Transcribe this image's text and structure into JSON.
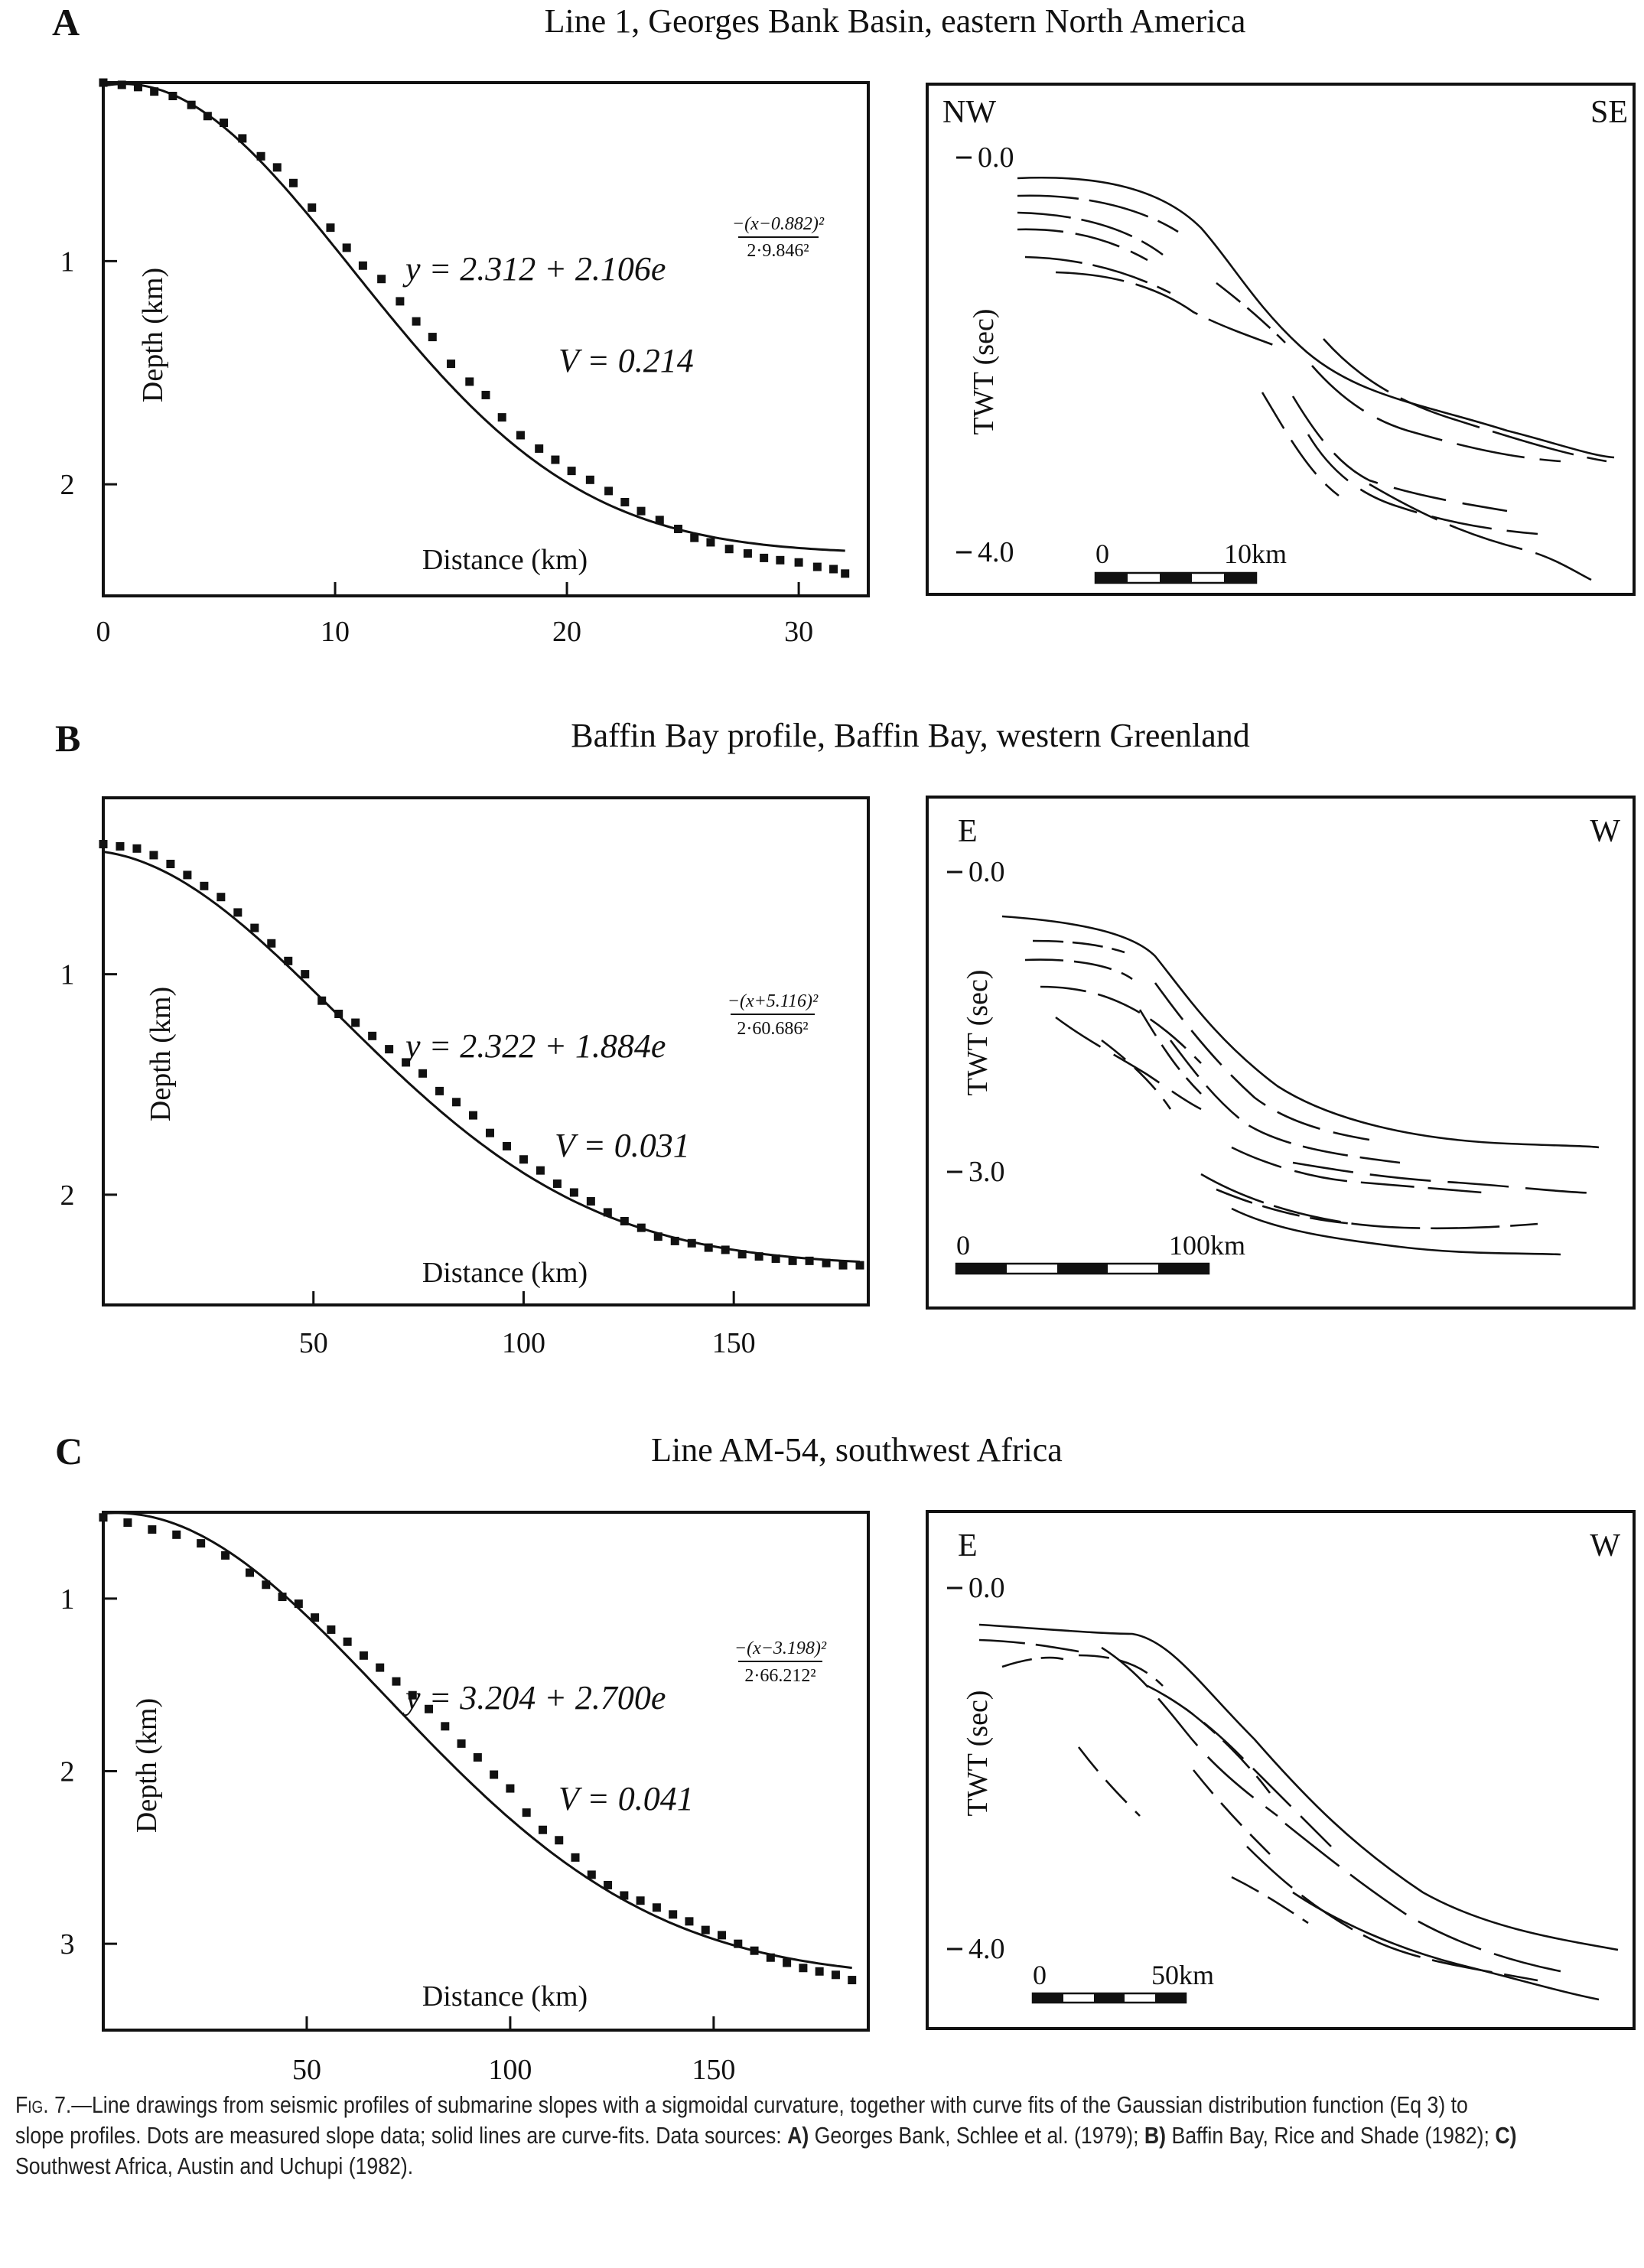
{
  "figure": {
    "panels": [
      {
        "letter": "A",
        "title": "Line 1, Georges Bank Basin, eastern North America",
        "equation": {
          "lhs": "y = 2.312 + 2.106e",
          "num": "−(x−0.882)²",
          "den": "2·9.846²"
        },
        "v_value": "V = 0.214",
        "x_label": "Distance (km)",
        "y_label": "Depth (km)",
        "x_ticks": [
          "0",
          "10",
          "20",
          "30"
        ],
        "y_ticks": [
          "1",
          "2"
        ],
        "seismic": {
          "left_dir": "NW",
          "right_dir": "SE",
          "twt_label": "TWT (sec)",
          "twt_top": "0.0",
          "twt_bottom": "4.0",
          "scale_left": "0",
          "scale_right": "10km"
        }
      },
      {
        "letter": "B",
        "title": "Baffin Bay profile, Baffin Bay, western Greenland",
        "equation": {
          "lhs": "y = 2.322 + 1.884e",
          "num": "−(x+5.116)²",
          "den": "2·60.686²"
        },
        "v_value": "V = 0.031",
        "x_label": "Distance (km)",
        "y_label": "Depth (km)",
        "x_ticks": [
          "50",
          "100",
          "150"
        ],
        "y_ticks": [
          "1",
          "2"
        ],
        "seismic": {
          "left_dir": "E",
          "right_dir": "W",
          "twt_label": "TWT (sec)",
          "twt_top": "0.0",
          "twt_bottom": "3.0",
          "scale_left": "0",
          "scale_right": "100km"
        }
      },
      {
        "letter": "C",
        "title": "Line AM-54, southwest Africa",
        "equation": {
          "lhs": "y = 3.204 + 2.700e",
          "num": "−(x−3.198)²",
          "den": "2·66.212²"
        },
        "v_value": "V = 0.041",
        "x_label": "Distance (km)",
        "y_label": "Depth (km)",
        "x_ticks": [
          "50",
          "100",
          "150"
        ],
        "y_ticks": [
          "1",
          "2",
          "3"
        ],
        "seismic": {
          "left_dir": "E",
          "right_dir": "W",
          "twt_label": "TWT (sec)",
          "twt_top": "0.0",
          "twt_bottom": "4.0",
          "scale_left": "0",
          "scale_right": "50km"
        }
      }
    ],
    "caption": {
      "lead": "Fig. 7.—",
      "line1": "Line drawings from seismic profiles of submarine slopes with a sigmoidal curvature, together with curve fits of the Gaussian distribution function (Eq 3) to",
      "line2_a": "slope profiles. Dots are measured slope data; solid lines are curve-fits. Data sources: ",
      "a_label": "A)",
      "a_text": " Georges Bank, Schlee et al. (1979); ",
      "b_label": "B)",
      "b_text": " Baffin Bay, Rice and Shade (1982); ",
      "c_label": "C)",
      "line3": "Southwest Africa, Austin and Uchupi (1982)."
    }
  },
  "chart_data": [
    {
      "type": "scatter",
      "title": "Line 1, Georges Bank Basin, eastern North America",
      "xlabel": "Distance (km)",
      "ylabel": "Depth (km)",
      "xlim": [
        0,
        33
      ],
      "ylim": [
        0.2,
        2.5
      ],
      "y_inverted": true,
      "fit": {
        "a": 2.312,
        "b": 2.106,
        "mu": 0.882,
        "sigma": 9.846
      },
      "x": [
        0,
        0.8,
        1.5,
        2.2,
        3,
        3.8,
        4.5,
        5.2,
        6,
        6.8,
        7.5,
        8.2,
        9,
        9.8,
        10.5,
        11.2,
        12,
        12.8,
        13.5,
        14.2,
        15,
        15.8,
        16.5,
        17.2,
        18,
        18.8,
        19.5,
        20.2,
        21,
        21.8,
        22.5,
        23.2,
        24,
        24.8,
        25.5,
        26.2,
        27,
        27.8,
        28.5,
        29.2,
        30,
        30.8,
        31.5,
        32
      ],
      "y": [
        0.2,
        0.21,
        0.22,
        0.24,
        0.26,
        0.3,
        0.35,
        0.38,
        0.45,
        0.53,
        0.58,
        0.65,
        0.76,
        0.85,
        0.94,
        1.02,
        1.08,
        1.18,
        1.27,
        1.34,
        1.46,
        1.54,
        1.6,
        1.7,
        1.78,
        1.84,
        1.89,
        1.94,
        1.98,
        2.03,
        2.08,
        2.12,
        2.16,
        2.2,
        2.24,
        2.26,
        2.29,
        2.31,
        2.33,
        2.34,
        2.35,
        2.37,
        2.38,
        2.4
      ]
    },
    {
      "type": "scatter",
      "title": "Baffin Bay profile, Baffin Bay, western Greenland",
      "xlabel": "Distance (km)",
      "ylabel": "Depth (km)",
      "xlim": [
        0,
        182
      ],
      "ylim": [
        0.2,
        2.5
      ],
      "y_inverted": true,
      "fit": {
        "a": 2.322,
        "b": 1.884,
        "mu": -5.116,
        "sigma": 60.686
      },
      "x": [
        0,
        4,
        8,
        12,
        16,
        20,
        24,
        28,
        32,
        36,
        40,
        44,
        48,
        52,
        56,
        60,
        64,
        68,
        72,
        76,
        80,
        84,
        88,
        92,
        96,
        100,
        104,
        108,
        112,
        116,
        120,
        124,
        128,
        132,
        136,
        140,
        144,
        148,
        152,
        156,
        160,
        164,
        168,
        172,
        176,
        180
      ],
      "y": [
        0.41,
        0.42,
        0.43,
        0.46,
        0.5,
        0.55,
        0.6,
        0.65,
        0.72,
        0.79,
        0.86,
        0.94,
        1.0,
        1.12,
        1.18,
        1.22,
        1.28,
        1.34,
        1.4,
        1.45,
        1.53,
        1.58,
        1.64,
        1.72,
        1.78,
        1.84,
        1.89,
        1.95,
        1.99,
        2.03,
        2.08,
        2.12,
        2.15,
        2.19,
        2.21,
        2.22,
        2.24,
        2.25,
        2.27,
        2.28,
        2.29,
        2.3,
        2.3,
        2.31,
        2.32,
        2.32
      ]
    },
    {
      "type": "scatter",
      "title": "Line AM-54, southwest Africa",
      "xlabel": "Distance (km)",
      "ylabel": "Depth (km)",
      "xlim": [
        0,
        188
      ],
      "ylim": [
        0.5,
        3.5
      ],
      "y_inverted": true,
      "fit": {
        "a": 3.204,
        "b": 2.7,
        "mu": 3.198,
        "sigma": 66.212
      },
      "x": [
        0,
        6,
        12,
        18,
        24,
        30,
        36,
        40,
        44,
        48,
        52,
        56,
        60,
        64,
        68,
        72,
        76,
        80,
        84,
        88,
        92,
        96,
        100,
        104,
        108,
        112,
        116,
        120,
        124,
        128,
        132,
        136,
        140,
        144,
        148,
        152,
        156,
        160,
        164,
        168,
        172,
        176,
        180,
        184
      ],
      "y": [
        0.53,
        0.56,
        0.6,
        0.63,
        0.68,
        0.75,
        0.85,
        0.92,
        0.99,
        1.03,
        1.11,
        1.18,
        1.25,
        1.33,
        1.4,
        1.48,
        1.56,
        1.64,
        1.74,
        1.84,
        1.92,
        2.02,
        2.1,
        2.24,
        2.34,
        2.4,
        2.5,
        2.6,
        2.66,
        2.72,
        2.75,
        2.79,
        2.83,
        2.87,
        2.92,
        2.95,
        3.0,
        3.04,
        3.08,
        3.11,
        3.14,
        3.16,
        3.18,
        3.21
      ]
    }
  ]
}
